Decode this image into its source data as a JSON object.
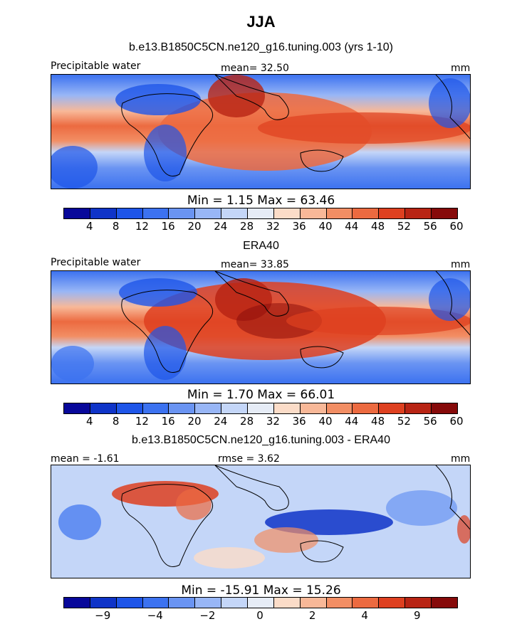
{
  "title": "JJA",
  "chart_data": [
    {
      "type": "heatmap",
      "title": "b.e13.B1850C5CN.ne120_g16.tuning.003 (yrs 1-10)",
      "left_label": "Precipitable water",
      "center_label": "mean=  32.50",
      "units": "mm",
      "min_max": "Min =    1.15  Max =   63.46",
      "colorbar": {
        "ticks": [
          "4",
          "8",
          "12",
          "16",
          "20",
          "24",
          "28",
          "32",
          "36",
          "40",
          "44",
          "48",
          "52",
          "56",
          "60"
        ],
        "colors": [
          "#08089a",
          "#0f34c8",
          "#1e55e8",
          "#3c72f0",
          "#6a94f2",
          "#98b6f6",
          "#c4d6f8",
          "#e6ecf6",
          "#fbdcc8",
          "#f8b898",
          "#f28e64",
          "#ec6a40",
          "#de4020",
          "#b82414",
          "#860a0a"
        ]
      }
    },
    {
      "type": "heatmap",
      "title": "ERA40",
      "left_label": "Precipitable water",
      "center_label": "mean=  33.85",
      "units": "mm",
      "min_max": "Min =    1.70  Max =   66.01",
      "colorbar": {
        "ticks": [
          "4",
          "8",
          "12",
          "16",
          "20",
          "24",
          "28",
          "32",
          "36",
          "40",
          "44",
          "48",
          "52",
          "56",
          "60"
        ],
        "colors": [
          "#08089a",
          "#0f34c8",
          "#1e55e8",
          "#3c72f0",
          "#6a94f2",
          "#98b6f6",
          "#c4d6f8",
          "#e6ecf6",
          "#fbdcc8",
          "#f8b898",
          "#f28e64",
          "#ec6a40",
          "#de4020",
          "#b82414",
          "#860a0a"
        ]
      }
    },
    {
      "type": "heatmap",
      "title": "b.e13.B1850C5CN.ne120_g16.tuning.003 - ERA40",
      "left_label": "mean =  -1.61",
      "center_label": "rmse =   3.62",
      "units": "mm",
      "min_max": "Min = -15.91  Max =   15.26",
      "colorbar": {
        "ticks": [
          "-9",
          "-4",
          "-2",
          "0",
          "2",
          "4",
          "9"
        ],
        "tick_positions": [
          1.5,
          3.5,
          5.5,
          7.5,
          9.5,
          11.5,
          13.5
        ],
        "colors": [
          "#08089a",
          "#0f34c8",
          "#1e55e8",
          "#3c72f0",
          "#6a94f2",
          "#98b6f6",
          "#c4d6f8",
          "#e6ecf6",
          "#fbdcc8",
          "#f8b898",
          "#f28e64",
          "#ec6a40",
          "#de4020",
          "#b82414",
          "#860a0a"
        ]
      }
    }
  ]
}
